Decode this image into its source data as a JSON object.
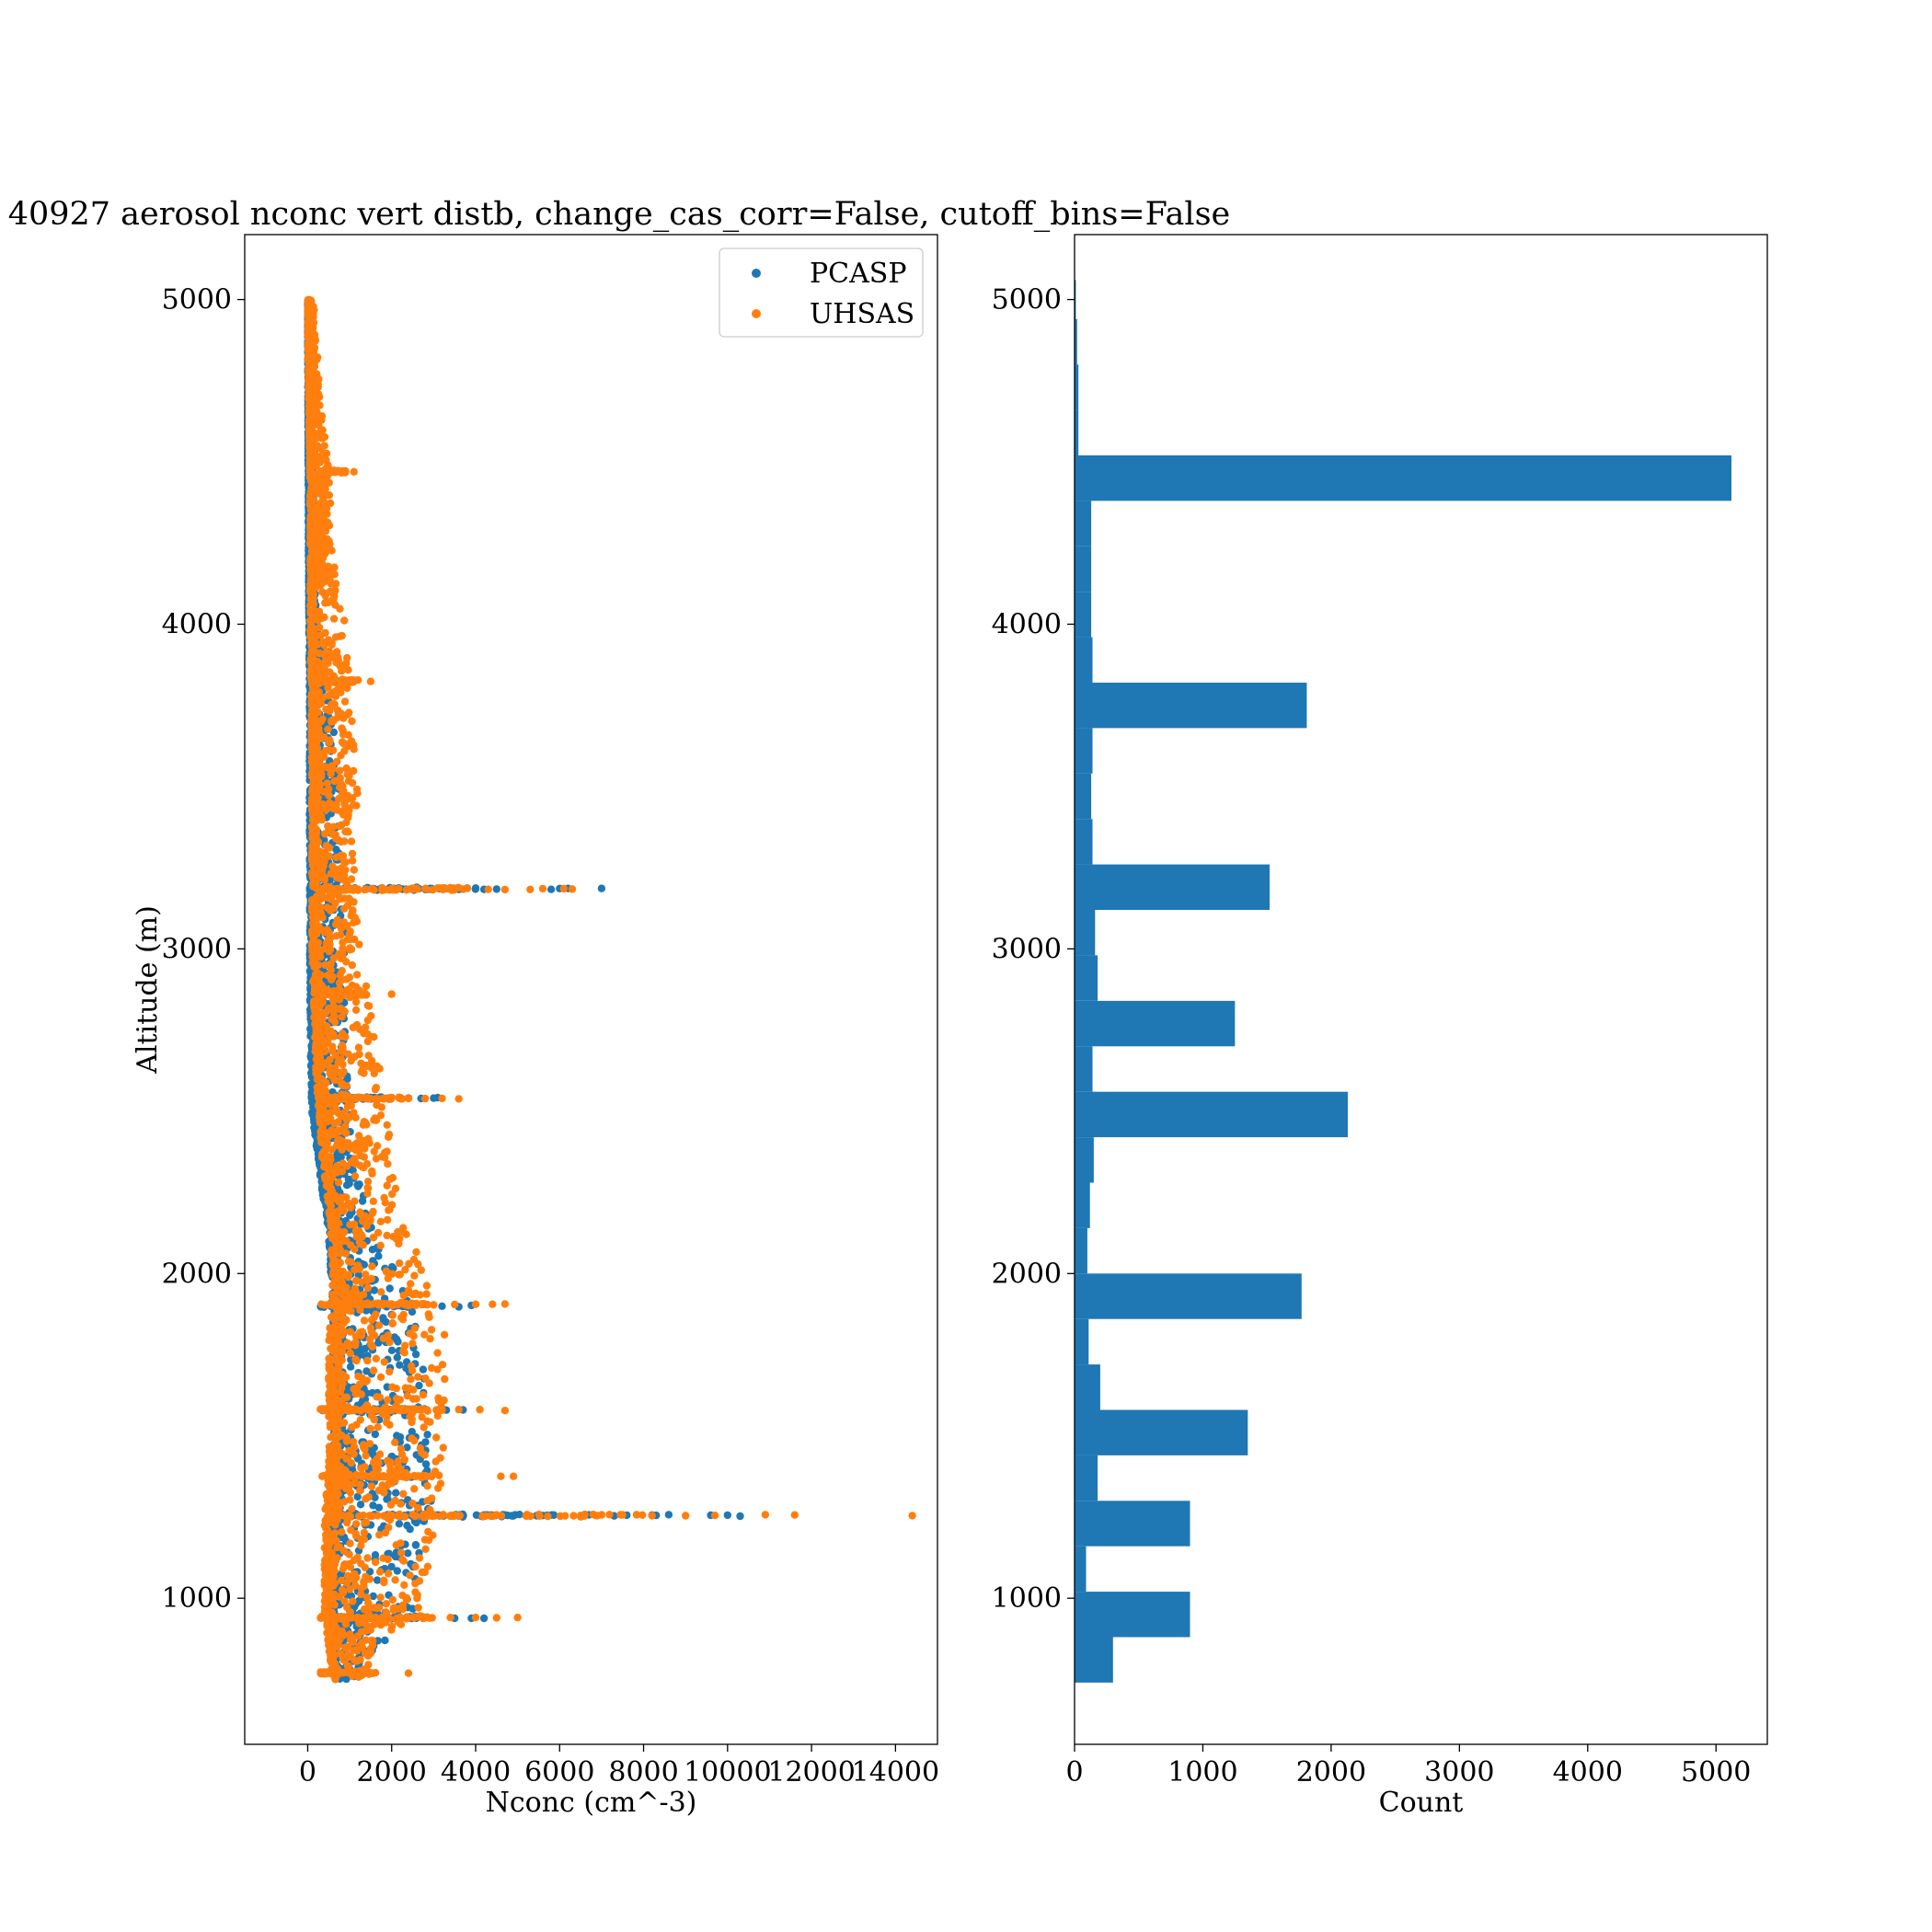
{
  "figure": {
    "title": "40927 aerosol nconc vert distb, change_cas_corr=False, cutoff_bins=False"
  },
  "colors": {
    "pcasp": "#1f77b4",
    "uhsas": "#ff7f0e",
    "hist": "#1f77b4"
  },
  "chart_data": [
    {
      "type": "scatter",
      "xlabel": "Nconc (cm^-3)",
      "ylabel": "Altitude (m)",
      "xlim": [
        -1500,
        15000
      ],
      "ylim": [
        550,
        5200
      ],
      "xticks": [
        0,
        2000,
        4000,
        6000,
        8000,
        10000,
        12000,
        14000
      ],
      "yticks": [
        1000,
        2000,
        3000,
        4000,
        5000
      ],
      "legend": {
        "placement": "top-right",
        "entries": [
          "PCASP",
          "UHSAS"
        ]
      },
      "grid": false,
      "series": [
        {
          "name": "PCASP",
          "color": "#1f77b4",
          "profile": [
            [
              5000,
              0,
              80
            ],
            [
              4600,
              10,
              120
            ],
            [
              4200,
              20,
              150
            ],
            [
              4000,
              30,
              250
            ],
            [
              3800,
              40,
              500
            ],
            [
              3500,
              40,
              800
            ],
            [
              3200,
              50,
              800
            ],
            [
              3000,
              50,
              900
            ],
            [
              2700,
              60,
              900
            ],
            [
              2500,
              100,
              1000
            ],
            [
              2300,
              300,
              1200
            ],
            [
              2100,
              500,
              1700
            ],
            [
              1900,
              600,
              2500
            ],
            [
              1700,
              600,
              2800
            ],
            [
              1500,
              600,
              2900
            ],
            [
              1300,
              600,
              3000
            ],
            [
              1100,
              500,
              2700
            ],
            [
              950,
              450,
              2600
            ],
            [
              800,
              600,
              1300
            ],
            [
              750,
              700,
              1200
            ]
          ],
          "spikes": [
            {
              "y": 3185,
              "x": [
                3100,
                3400,
                3600,
                3800,
                4000,
                4200,
                4500,
                5800,
                6000,
                6200,
                7000
              ]
            },
            {
              "y": 1255,
              "x": [
                4700,
                6700,
                7300,
                7600,
                8200,
                8300,
                8600,
                9600,
                10000,
                10300
              ]
            },
            {
              "y": 2540,
              "x": [
                2400,
                2700,
                3000,
                3100
              ]
            },
            {
              "y": 1900,
              "x": [
                3200,
                3600,
                3900
              ]
            },
            {
              "y": 1580,
              "x": [
                3300,
                3700
              ]
            },
            {
              "y": 940,
              "x": [
                3500,
                3900,
                4200
              ]
            }
          ]
        },
        {
          "name": "UHSAS",
          "color": "#ff7f0e",
          "profile": [
            [
              5000,
              0,
              150
            ],
            [
              4700,
              20,
              300
            ],
            [
              4500,
              50,
              500
            ],
            [
              4200,
              60,
              600
            ],
            [
              4000,
              60,
              900
            ],
            [
              3800,
              80,
              1000
            ],
            [
              3500,
              100,
              1200
            ],
            [
              3200,
              100,
              1100
            ],
            [
              3000,
              100,
              1300
            ],
            [
              2800,
              150,
              1500
            ],
            [
              2600,
              200,
              1800
            ],
            [
              2400,
              300,
              2000
            ],
            [
              2200,
              500,
              2200
            ],
            [
              2000,
              600,
              2800
            ],
            [
              1800,
              500,
              3300
            ],
            [
              1600,
              500,
              3300
            ],
            [
              1400,
              500,
              3200
            ],
            [
              1250,
              400,
              3200
            ],
            [
              1050,
              400,
              2800
            ],
            [
              950,
              400,
              2600
            ],
            [
              850,
              500,
              1500
            ],
            [
              750,
              600,
              1600
            ]
          ],
          "spikes": [
            {
              "y": 3185,
              "x": [
                2800,
                3400,
                3800,
                4300,
                4700,
                5300,
                5600,
                6100,
                6300
              ]
            },
            {
              "y": 1255,
              "x": [
                4500,
                5200,
                6500,
                6900,
                7500,
                8200,
                9000,
                9700,
                10900,
                11600,
                14400
              ]
            },
            {
              "y": 2540,
              "x": [
                2400,
                2800,
                3200,
                3600
              ]
            },
            {
              "y": 1905,
              "x": [
                3000,
                3500,
                4000,
                4400,
                4700
              ]
            },
            {
              "y": 1580,
              "x": [
                3200,
                3600,
                4100,
                4700
              ]
            },
            {
              "y": 940,
              "x": [
                2800,
                3400,
                4000,
                4500,
                5000
              ]
            },
            {
              "y": 1375,
              "x": [
                4600,
                4900
              ]
            },
            {
              "y": 3825,
              "x": [
                1200,
                1500
              ]
            },
            {
              "y": 4470,
              "x": [
                1100
              ]
            },
            {
              "y": 2860,
              "x": [
                2000
              ]
            },
            {
              "y": 770,
              "x": [
                1100,
                1500,
                2400
              ]
            }
          ]
        }
      ]
    },
    {
      "type": "bar",
      "orientation": "horizontal",
      "xlabel": "Count",
      "ylabel": "",
      "xlim": [
        0,
        5400
      ],
      "ylim": [
        550,
        5200
      ],
      "xticks": [
        0,
        1000,
        2000,
        3000,
        4000,
        5000
      ],
      "yticks": [
        1000,
        2000,
        3000,
        4000,
        5000
      ],
      "grid": false,
      "bin_width": 140,
      "bins": [
        {
          "y": 810,
          "count": 300
        },
        {
          "y": 950,
          "count": 900
        },
        {
          "y": 1090,
          "count": 90
        },
        {
          "y": 1230,
          "count": 900
        },
        {
          "y": 1370,
          "count": 180
        },
        {
          "y": 1510,
          "count": 1350
        },
        {
          "y": 1650,
          "count": 200
        },
        {
          "y": 1790,
          "count": 110
        },
        {
          "y": 1930,
          "count": 1770
        },
        {
          "y": 2070,
          "count": 100
        },
        {
          "y": 2210,
          "count": 120
        },
        {
          "y": 2350,
          "count": 150
        },
        {
          "y": 2490,
          "count": 2130
        },
        {
          "y": 2630,
          "count": 140
        },
        {
          "y": 2770,
          "count": 1250
        },
        {
          "y": 2910,
          "count": 180
        },
        {
          "y": 3050,
          "count": 160
        },
        {
          "y": 3190,
          "count": 1520
        },
        {
          "y": 3330,
          "count": 140
        },
        {
          "y": 3470,
          "count": 130
        },
        {
          "y": 3610,
          "count": 140
        },
        {
          "y": 3750,
          "count": 1810
        },
        {
          "y": 3890,
          "count": 140
        },
        {
          "y": 4030,
          "count": 130
        },
        {
          "y": 4170,
          "count": 130
        },
        {
          "y": 4310,
          "count": 130
        },
        {
          "y": 4450,
          "count": 5120
        },
        {
          "y": 4590,
          "count": 30
        },
        {
          "y": 4730,
          "count": 30
        },
        {
          "y": 4870,
          "count": 20
        },
        {
          "y": 4990,
          "count": 10
        }
      ]
    }
  ]
}
